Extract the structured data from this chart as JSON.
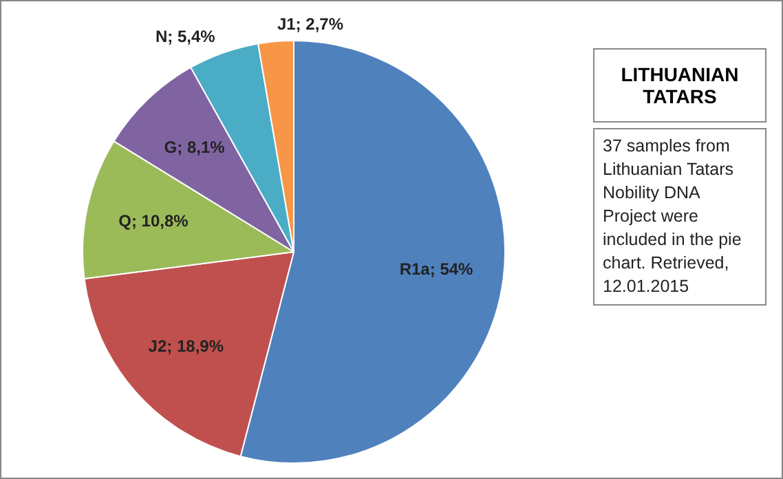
{
  "chart_data": {
    "type": "pie",
    "title": "LITHUANIAN TATARS",
    "categories": [
      "R1a",
      "J2",
      "Q",
      "G",
      "N",
      "J1"
    ],
    "values": [
      54,
      18.9,
      10.8,
      8.1,
      5.4,
      2.7
    ],
    "colors": [
      "#4f81bd",
      "#c0504d",
      "#9bbb59",
      "#8064a2",
      "#4bacc6",
      "#f79646"
    ],
    "value_labels": [
      "54%",
      "18,9%",
      "10,8%",
      "8,1%",
      "5,4%",
      "2,7%"
    ],
    "legend": false,
    "annotations": [
      "37 samples from Lithuanian Tatars Nobility DNA Project were included in the pie chart. Retrieved, 12.01.2015"
    ]
  }
}
